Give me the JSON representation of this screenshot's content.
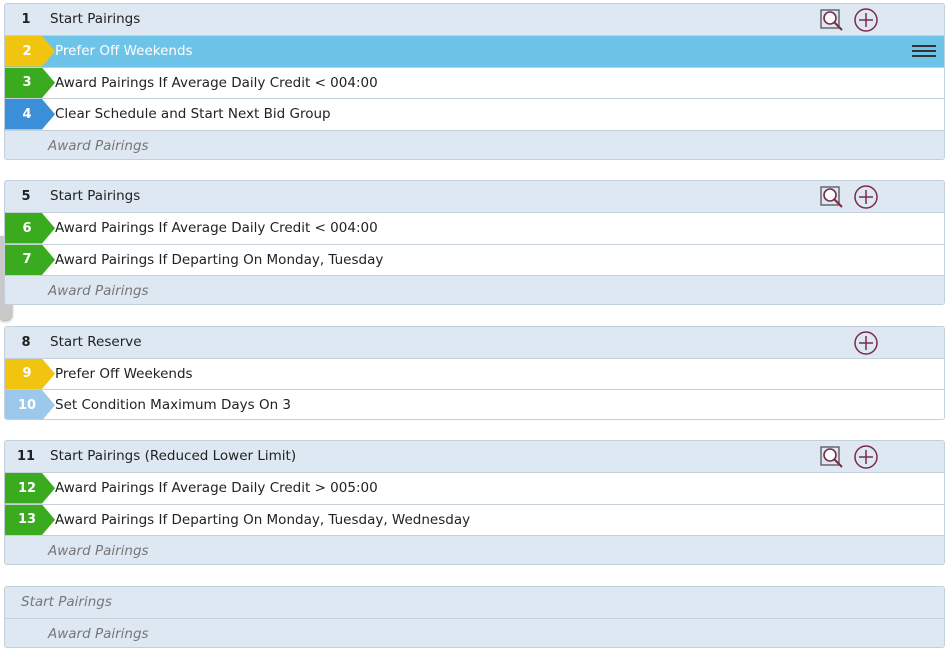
{
  "groups": [
    {
      "number": "1",
      "title": "Start Pairings",
      "search_icon": true,
      "add_icon": true,
      "rows": [
        {
          "number": "2",
          "label": "Prefer Off Weekends",
          "color": "#f1c40f",
          "selected": true
        },
        {
          "number": "3",
          "label": "Award Pairings If Average Daily Credit < 004:00",
          "color": "#3aaa1f"
        },
        {
          "number": "4",
          "label": "Clear Schedule and Start Next Bid Group",
          "color": "#3b8fd8"
        }
      ],
      "footer": "Award Pairings"
    },
    {
      "number": "5",
      "title": "Start Pairings",
      "search_icon": true,
      "add_icon": true,
      "rows": [
        {
          "number": "6",
          "label": "Award Pairings If Average Daily Credit < 004:00",
          "color": "#3aaa1f"
        },
        {
          "number": "7",
          "label": "Award Pairings If Departing On Monday, Tuesday",
          "color": "#3aaa1f"
        }
      ],
      "footer": "Award Pairings"
    },
    {
      "number": "8",
      "title": "Start Reserve",
      "search_icon": false,
      "add_icon": true,
      "rows": [
        {
          "number": "9",
          "label": "Prefer Off Weekends",
          "color": "#f1c40f"
        },
        {
          "number": "10",
          "label": "Set Condition Maximum Days On 3",
          "color": "#9cc8ec"
        }
      ]
    },
    {
      "number": "11",
      "title": "Start Pairings (Reduced Lower Limit)",
      "search_icon": true,
      "add_icon": true,
      "rows": [
        {
          "number": "12",
          "label": "Award Pairings If Average Daily Credit > 005:00",
          "color": "#3aaa1f"
        },
        {
          "number": "13",
          "label": "Award Pairings If Departing On Monday, Tuesday, Wednesday",
          "color": "#3aaa1f"
        }
      ],
      "footer": "Award Pairings"
    },
    {
      "placeholder": "Start Pairings",
      "footer": "Award Pairings"
    }
  ]
}
